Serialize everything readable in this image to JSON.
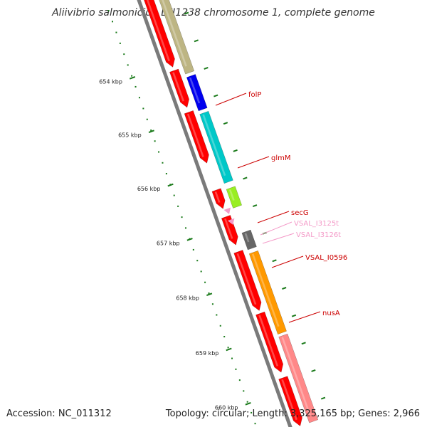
{
  "title": "Aliivibrio salmonicida LFI1238 chromosome 1, complete genome",
  "footer": {
    "accession": "Accession: NC_011312",
    "summary": "Topology: circular; Length: 3,325,165 bp; Genes: 2,966"
  },
  "ticks": [
    "654 kbp",
    "655 kbp",
    "656 kbp",
    "657 kbp",
    "658 kbp",
    "659 kbp",
    "660 kbp"
  ],
  "colors": {
    "backbone": "#7a7a7a",
    "tick": "#1a7a1a",
    "cds_reverse": "#ff0000",
    "trna": "#f49ac8",
    "label_gene": "#cc0000",
    "label_trna": "#f49ac8"
  },
  "gene_labels": [
    {
      "text": "folP",
      "color": "#cc0000"
    },
    {
      "text": "glmM",
      "color": "#cc0000"
    },
    {
      "text": "secG",
      "color": "#cc0000"
    },
    {
      "text": "VSAL_I3125t",
      "color": "#f49ac8"
    },
    {
      "text": "VSAL_I3126t",
      "color": "#f49ac8"
    },
    {
      "text": "VSAL_I0596",
      "color": "#cc0000"
    },
    {
      "text": "nusA",
      "color": "#cc0000"
    }
  ],
  "features": [
    {
      "track": "reverse",
      "color": "#ff0000"
    },
    {
      "track": "reverse",
      "color": "#ff0000"
    },
    {
      "track": "reverse",
      "color": "#ff0000"
    },
    {
      "track": "reverse",
      "color": "#ff0000"
    },
    {
      "track": "reverse",
      "color": "#ff0000"
    },
    {
      "track": "reverse",
      "color": "#ff0000"
    },
    {
      "track": "reverse",
      "color": "#ff0000"
    },
    {
      "track": "reverse",
      "color": "#ff0000"
    },
    {
      "track": "trna",
      "color": "#f49ac8"
    },
    {
      "track": "trna",
      "color": "#f49ac8"
    },
    {
      "track": "category",
      "color": "#bdb583"
    },
    {
      "track": "category",
      "color": "#0000ee"
    },
    {
      "track": "category",
      "color": "#00c8c8"
    },
    {
      "track": "category",
      "color": "#99ee22"
    },
    {
      "track": "category",
      "color": "#666666"
    },
    {
      "track": "category",
      "color": "#ff9900"
    },
    {
      "track": "category",
      "color": "#ff8888"
    }
  ]
}
